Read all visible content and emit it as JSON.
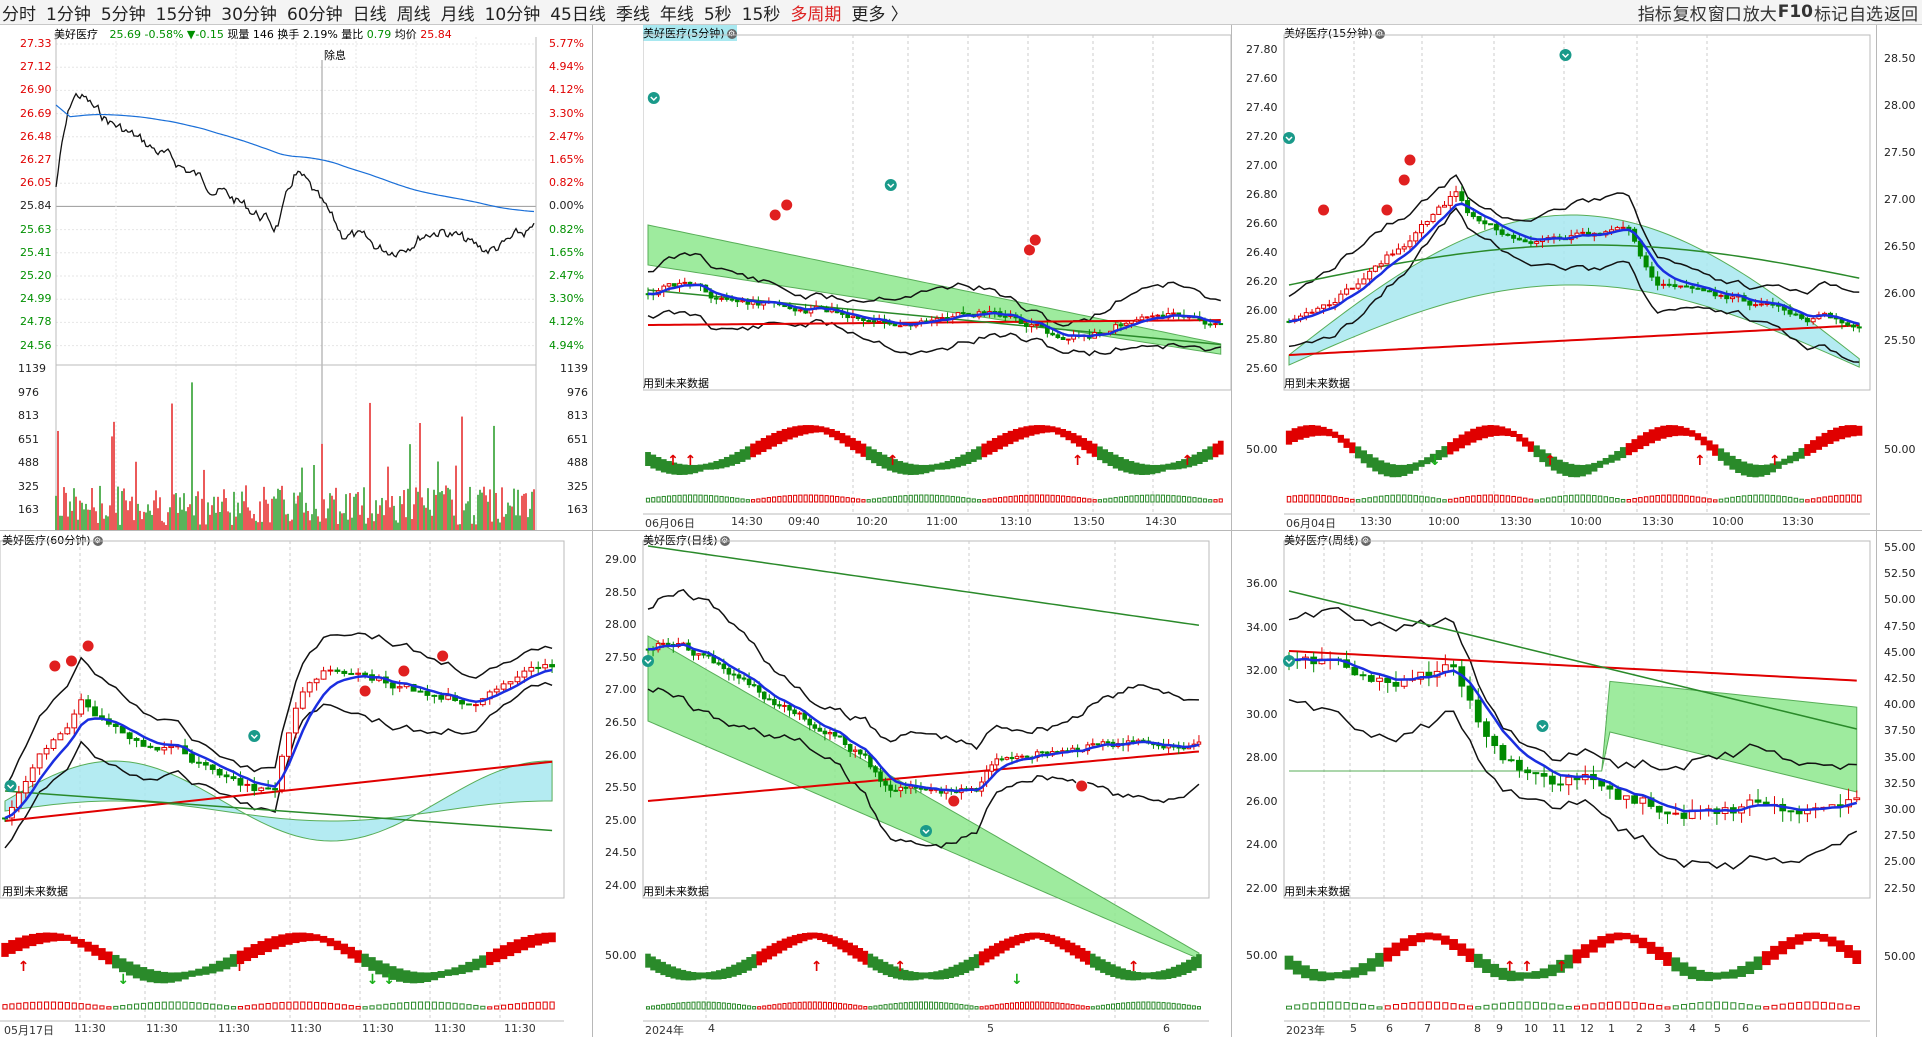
{
  "topbar": {
    "tabs": [
      "分时",
      "1分钟",
      "5分钟",
      "15分钟",
      "30分钟",
      "60分钟",
      "日线",
      "周线",
      "月线",
      "10分钟",
      "45日线",
      "季线",
      "年线",
      "5秒",
      "15秒",
      "多周期",
      "更多 〉"
    ],
    "active_tab": "多周期",
    "right": [
      "指标",
      "复权",
      "窗口",
      "放大",
      "F10",
      "标记",
      "自选",
      "返回"
    ]
  },
  "intraday": {
    "title": "美好医疗",
    "price": "25.69",
    "pct": "-0.58%",
    "chg": "▼-0.15",
    "vol_label": "现量",
    "vol": "146",
    "turnover_label": "换手",
    "turnover": "2.19%",
    "ratio_label": "量比",
    "ratio": "0.79",
    "avg_label": "均价",
    "avg": "25.84",
    "ex_label": "除息",
    "left_axis": [
      "27.33",
      "27.12",
      "26.90",
      "26.69",
      "26.48",
      "26.27",
      "26.05",
      "25.84",
      "25.63",
      "25.41",
      "25.20",
      "24.99",
      "24.78",
      "24.56"
    ],
    "right_axis": [
      "5.77%",
      "4.94%",
      "4.12%",
      "3.30%",
      "2.47%",
      "1.65%",
      "0.82%",
      "0.00%",
      "0.82%",
      "1.65%",
      "2.47%",
      "3.30%",
      "4.12%",
      "4.94%"
    ],
    "vol_axis": [
      "1139",
      "976",
      "813",
      "651",
      "488",
      "325",
      "163"
    ]
  },
  "panels": {
    "m5": {
      "title": "美好医疗(5分钟)",
      "note": "用到未来数据",
      "date": "06月06日",
      "xlabels": [
        "14:30",
        "09:40",
        "10:20",
        "11:00",
        "13:10",
        "13:50",
        "14:30"
      ]
    },
    "m15": {
      "title": "美好医疗(15分钟)",
      "note": "用到未来数据",
      "date": "06月04日",
      "left_axis": [
        "27.80",
        "27.60",
        "27.40",
        "27.20",
        "27.00",
        "26.80",
        "26.60",
        "26.40",
        "26.20",
        "26.00",
        "25.80",
        "25.60"
      ],
      "ind_axis": "50.00",
      "xlabels": [
        "13:30",
        "10:00",
        "13:30",
        "10:00",
        "13:30",
        "10:00",
        "13:30"
      ]
    },
    "m60": {
      "title": "美好医疗(60分钟)",
      "note": "用到未来数据",
      "date": "05月17日",
      "xlabels": [
        "11:30",
        "11:30",
        "11:30",
        "11:30",
        "11:30",
        "11:30",
        "11:30"
      ]
    },
    "day": {
      "title": "美好医疗(日线)",
      "note": "用到未来数据",
      "year": "2024年",
      "left_axis": [
        "29.00",
        "28.50",
        "28.00",
        "27.50",
        "27.00",
        "26.50",
        "26.00",
        "25.50",
        "25.00",
        "24.50",
        "24.00"
      ],
      "ind_axis": "50.00",
      "xlabels": [
        "4",
        "5",
        "6"
      ]
    },
    "week": {
      "title": "美好医疗(周线)",
      "note": "用到未来数据",
      "year": "2023年",
      "left_axis": [
        "36.00",
        "34.00",
        "32.00",
        "30.00",
        "28.00",
        "26.00",
        "24.00",
        "22.00"
      ],
      "ind_axis": "50.00",
      "xlabels": [
        "5",
        "6",
        "7",
        "8",
        "9",
        "10",
        "11",
        "12",
        "1",
        "2",
        "3",
        "4",
        "5",
        "6"
      ]
    }
  },
  "right_axis_top": [
    "28.50",
    "28.00",
    "27.50",
    "27.00",
    "26.50",
    "26.00",
    "25.50",
    "50.00"
  ],
  "right_axis_bottom": [
    "55.00",
    "52.50",
    "50.00",
    "47.50",
    "45.00",
    "42.50",
    "40.00",
    "37.50",
    "35.00",
    "32.50",
    "30.00",
    "27.50",
    "25.00",
    "22.50",
    "50.00"
  ],
  "colors": {
    "up": "#e00000",
    "down": "#008a00",
    "ma": "#0000ff",
    "cloud": "#78e078",
    "cloud2": "#a8e8f0"
  }
}
